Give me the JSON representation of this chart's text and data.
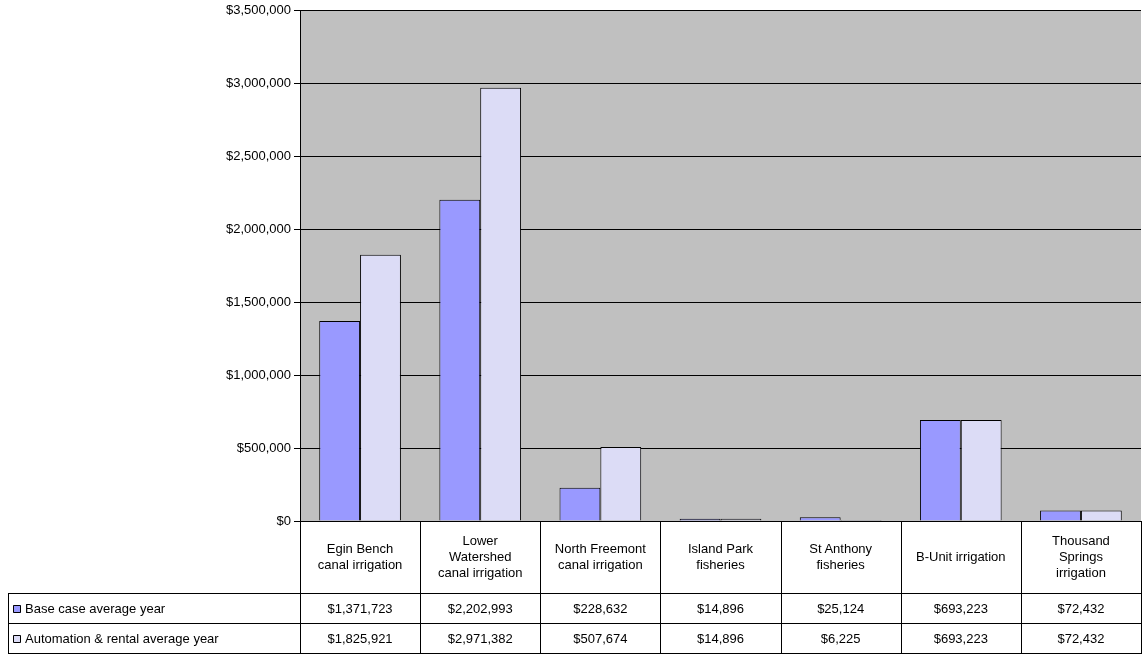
{
  "chart_data": {
    "type": "bar",
    "categories": [
      "Egin Bench canal irrigation",
      "Lower Watershed canal irrigation",
      "North Freemont canal irrigation",
      "Island Park fisheries",
      "St Anthony fisheries",
      "B-Unit irrigation",
      "Thousand Springs irrigation"
    ],
    "series": [
      {
        "name": "Base case average year",
        "color": "#9999ff",
        "values": [
          1371723,
          2202993,
          228632,
          14896,
          25124,
          693223,
          72432
        ],
        "value_labels": [
          "$1,371,723",
          "$2,202,993",
          "$228,632",
          "$14,896",
          "$25,124",
          "$693,223",
          "$72,432"
        ]
      },
      {
        "name": "Automation & rental average year",
        "color": "#dcdcf6",
        "values": [
          1825921,
          2971382,
          507674,
          14896,
          6225,
          693223,
          72432
        ],
        "value_labels": [
          "$1,825,921",
          "$2,971,382",
          "$507,674",
          "$14,896",
          "$6,225",
          "$693,223",
          "$72,432"
        ]
      }
    ],
    "ylim": [
      0,
      3500000
    ],
    "yticks": [
      {
        "value": 0,
        "label": "$0"
      },
      {
        "value": 500000,
        "label": "$500,000"
      },
      {
        "value": 1000000,
        "label": "$1,000,000"
      },
      {
        "value": 1500000,
        "label": "$1,500,000"
      },
      {
        "value": 2000000,
        "label": "$2,000,000"
      },
      {
        "value": 2500000,
        "label": "$2,500,000"
      },
      {
        "value": 3000000,
        "label": "$3,000,000"
      },
      {
        "value": 3500000,
        "label": "$3,500,000"
      }
    ],
    "grid": "y",
    "legend": "bottom"
  }
}
